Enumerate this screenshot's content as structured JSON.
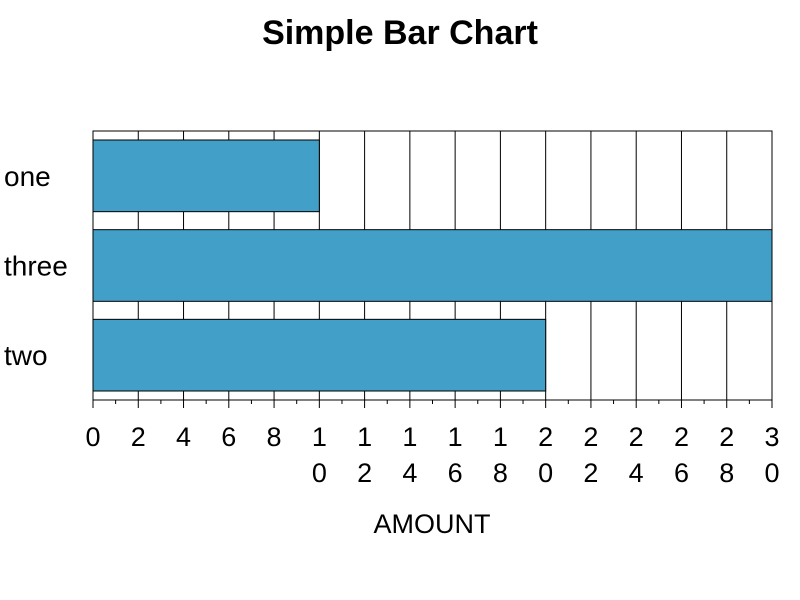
{
  "chart_data": {
    "type": "bar",
    "orientation": "horizontal",
    "title": "Simple Bar Chart",
    "xlabel": "AMOUNT",
    "ylabel": "",
    "categories": [
      "one",
      "three",
      "two"
    ],
    "values": [
      10,
      30,
      20
    ],
    "xlim": [
      0,
      30
    ],
    "xticks": [
      0,
      2,
      4,
      6,
      8,
      10,
      12,
      14,
      16,
      18,
      20,
      22,
      24,
      26,
      28,
      30
    ],
    "minor_ticks_per_interval": 1,
    "grid": "vertical",
    "bar_color": "#42a0c8",
    "legend": "none"
  }
}
